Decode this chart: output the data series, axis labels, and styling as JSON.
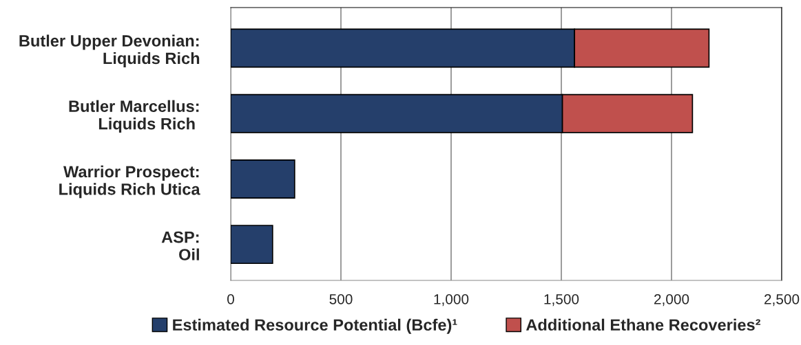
{
  "chart_data": {
    "type": "bar",
    "orientation": "horizontal",
    "stacked": true,
    "categories": [
      "Butler Upper Devonian:\nLiquids Rich",
      "Butler Marcellus:\nLiquids Rich ",
      "Warrior Prospect:\nLiquids Rich Utica",
      "ASP:\nOil"
    ],
    "series": [
      {
        "name": "Estimated Resource Potential (Bcfe)¹",
        "color": "#253f6b",
        "values": [
          1560,
          1505,
          290,
          190
        ]
      },
      {
        "name": "Additional Ethane Recoveries²",
        "color": "#c0504d",
        "values": [
          610,
          590,
          null,
          null
        ]
      }
    ],
    "xlim": [
      0,
      2500
    ],
    "xticks": [
      0,
      500,
      {
        "value": 1000,
        "label": "1,000"
      },
      {
        "value": 1500,
        "label": "1,500"
      },
      {
        "value": 2000,
        "label": "2,000"
      },
      {
        "value": 2500,
        "label": "2,500"
      }
    ],
    "grid": "x",
    "legend": "bottom"
  }
}
